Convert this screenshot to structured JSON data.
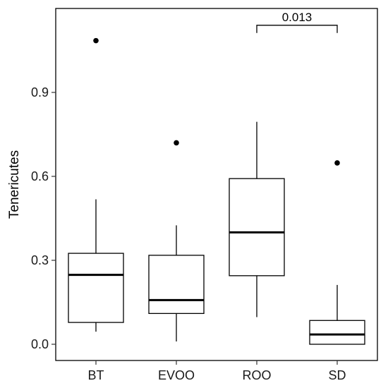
{
  "chart_data": {
    "type": "boxplot",
    "ylabel": "Tenericutes",
    "xlabel": "",
    "ylim": [
      -0.06,
      1.2
    ],
    "yticks": [
      0.0,
      0.3,
      0.6,
      0.9
    ],
    "ytick_labels": [
      "0.0",
      "0.3",
      "0.6",
      "0.9"
    ],
    "categories": [
      "BT",
      "EVOO",
      "ROO",
      "SD"
    ],
    "boxes": [
      {
        "category": "BT",
        "whisker_low": 0.045,
        "q1": 0.078,
        "median": 0.248,
        "q3": 0.325,
        "whisker_high": 0.518,
        "outliers": [
          1.085
        ]
      },
      {
        "category": "EVOO",
        "whisker_low": 0.01,
        "q1": 0.11,
        "median": 0.158,
        "q3": 0.318,
        "whisker_high": 0.425,
        "outliers": [
          0.72
        ]
      },
      {
        "category": "ROO",
        "whisker_low": 0.097,
        "q1": 0.245,
        "median": 0.4,
        "q3": 0.592,
        "whisker_high": 0.795,
        "outliers": []
      },
      {
        "category": "SD",
        "whisker_low": 0.0,
        "q1": 0.0,
        "median": 0.035,
        "q3": 0.085,
        "whisker_high": 0.212,
        "outliers": [
          0.648
        ]
      }
    ],
    "annotations": [
      {
        "type": "bracket",
        "from": "ROO",
        "to": "SD",
        "y": 1.14,
        "label": "0.013"
      }
    ],
    "grid": false,
    "legend": "none"
  }
}
